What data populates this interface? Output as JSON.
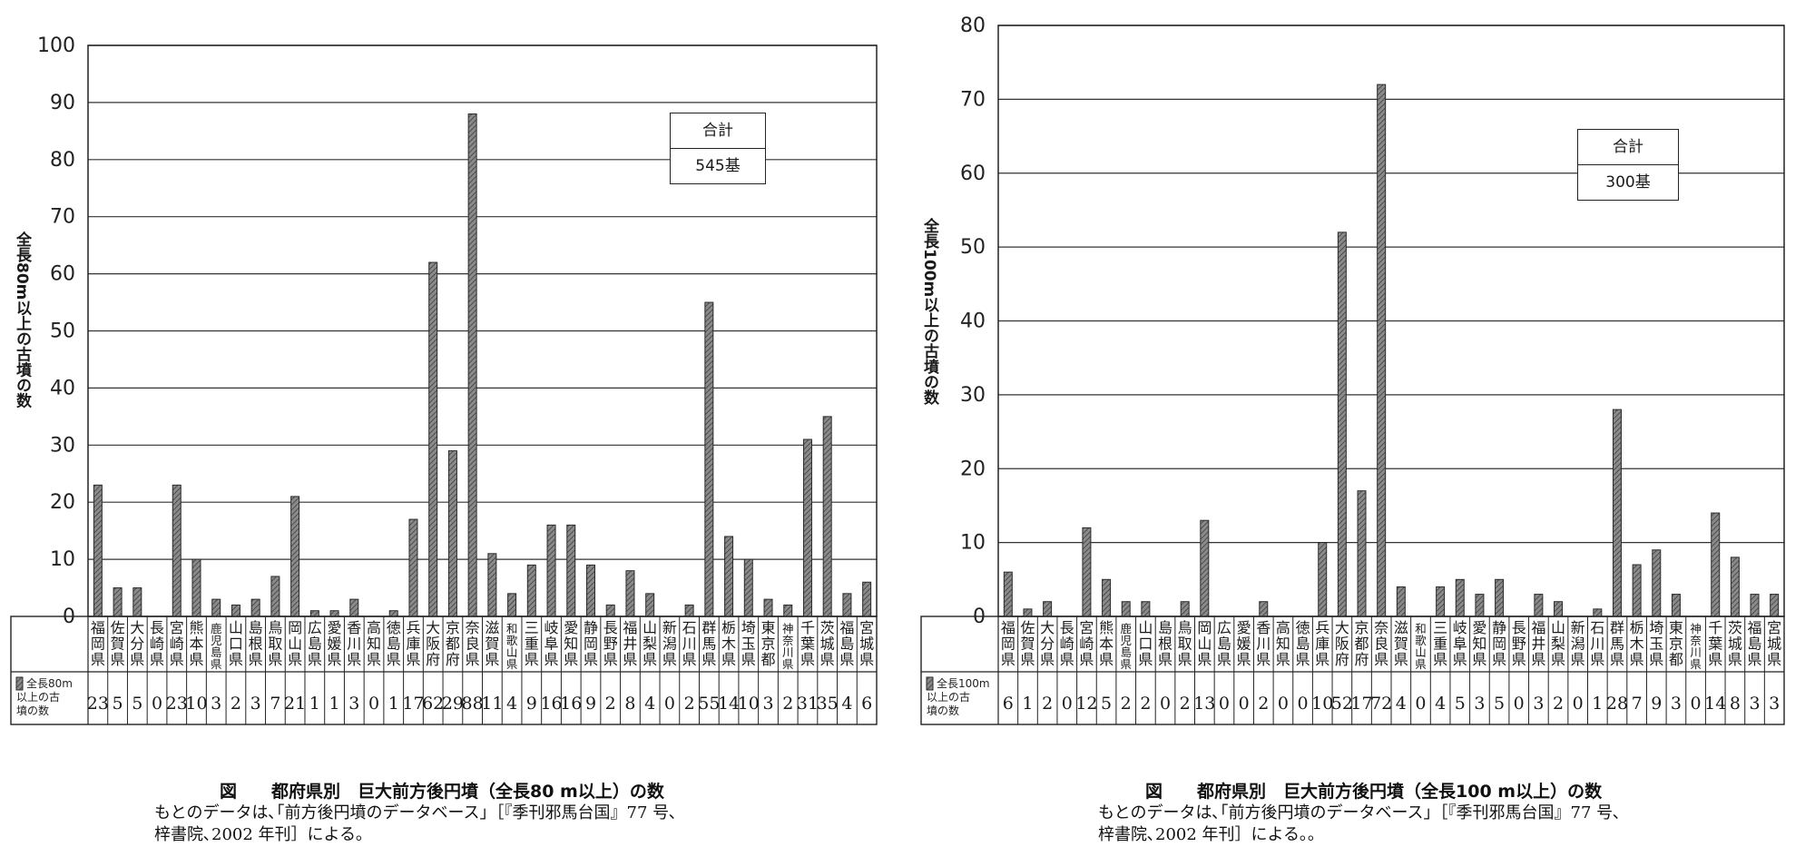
{
  "chart_data": [
    {
      "type": "bar",
      "ylabel": "全長80m以上の古墳の数",
      "ylim": [
        0,
        100
      ],
      "yticks": [
        0,
        10,
        20,
        30,
        40,
        50,
        60,
        70,
        80,
        90,
        100
      ],
      "grid": true,
      "legend_label": "全長80m以上の古墳の数",
      "total_label": "合計",
      "total_value": "545基",
      "categories": [
        "福岡県",
        "佐賀県",
        "大分県",
        "長崎県",
        "宮崎県",
        "熊本県",
        "鹿児島県",
        "山口県",
        "島根県",
        "鳥取県",
        "岡山県",
        "広島県",
        "愛媛県",
        "香川県",
        "高知県",
        "徳島県",
        "兵庫県",
        "大阪府",
        "京都府",
        "奈良県",
        "滋賀県",
        "和歌山県",
        "三重県",
        "岐阜県",
        "愛知県",
        "静岡県",
        "長野県",
        "福井県",
        "山梨県",
        "新潟県",
        "石川県",
        "群馬県",
        "栃木県",
        "埼玉県",
        "東京都",
        "神奈川県",
        "千葉県",
        "茨城県",
        "福島県",
        "宮城県"
      ],
      "values": [
        23,
        5,
        5,
        0,
        23,
        10,
        3,
        2,
        3,
        7,
        21,
        1,
        1,
        3,
        0,
        1,
        17,
        62,
        29,
        88,
        11,
        4,
        9,
        16,
        16,
        9,
        2,
        8,
        4,
        0,
        2,
        55,
        14,
        10,
        3,
        2,
        31,
        35,
        4,
        6
      ],
      "caption_title": "図　　都府県別　巨大前方後円墳（全長80 m以上）の数",
      "caption_lines": [
        "もとのデータは､｢前方後円墳のデータベース｣［『季刊邪馬台国』77 号､",
        "梓書院､2002 年刊］による｡"
      ]
    },
    {
      "type": "bar",
      "ylabel": "全長100m以上の古墳の数",
      "ylim": [
        0,
        80
      ],
      "yticks": [
        0,
        10,
        20,
        30,
        40,
        50,
        60,
        70,
        80
      ],
      "grid": true,
      "legend_label": "全長100m以上の古墳の数",
      "total_label": "合計",
      "total_value": "300基",
      "categories": [
        "福岡県",
        "佐賀県",
        "大分県",
        "長崎県",
        "宮崎県",
        "熊本県",
        "鹿児島県",
        "山口県",
        "島根県",
        "鳥取県",
        "岡山県",
        "広島県",
        "愛媛県",
        "香川県",
        "高知県",
        "徳島県",
        "兵庫県",
        "大阪府",
        "京都府",
        "奈良県",
        "滋賀県",
        "和歌山県",
        "三重県",
        "岐阜県",
        "愛知県",
        "静岡県",
        "長野県",
        "福井県",
        "山梨県",
        "新潟県",
        "石川県",
        "群馬県",
        "栃木県",
        "埼玉県",
        "東京都",
        "神奈川県",
        "千葉県",
        "茨城県",
        "福島県",
        "宮城県"
      ],
      "values": [
        6,
        1,
        2,
        0,
        12,
        5,
        2,
        2,
        0,
        2,
        13,
        0,
        0,
        2,
        0,
        0,
        10,
        52,
        17,
        72,
        4,
        0,
        4,
        5,
        3,
        5,
        0,
        3,
        2,
        0,
        1,
        28,
        7,
        9,
        3,
        0,
        14,
        8,
        3,
        3
      ],
      "caption_title": "図　　都府県別　巨大前方後円墳（全長100 m以上）の数",
      "caption_lines": [
        "もとのデータは､｢前方後円墳のデータベース｣［『季刊邪馬台国』77 号､",
        "梓書院､2002 年刊］による｡｡"
      ]
    }
  ]
}
